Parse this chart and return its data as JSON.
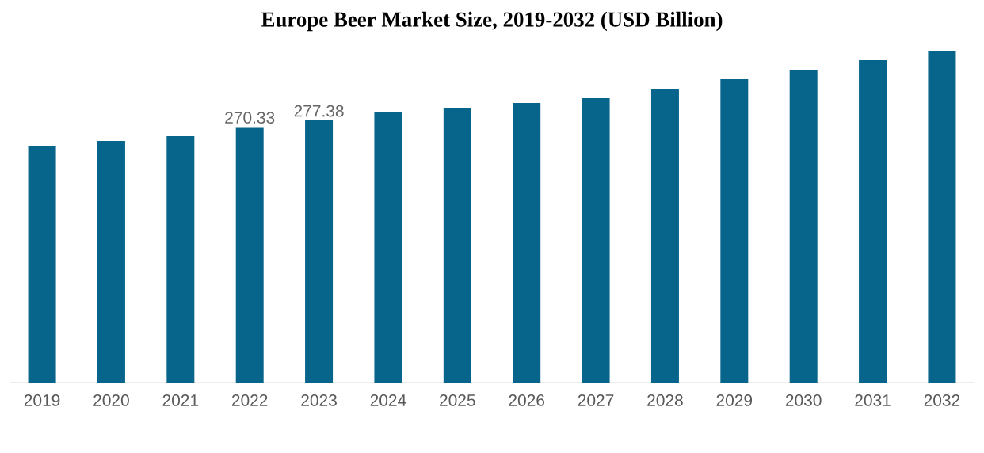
{
  "chart_data": {
    "type": "bar",
    "title": "Europe Beer Market Size, 2019-2032 (USD Billion)",
    "categories": [
      "2019",
      "2020",
      "2021",
      "2022",
      "2023",
      "2024",
      "2025",
      "2026",
      "2027",
      "2028",
      "2029",
      "2030",
      "2031",
      "2032"
    ],
    "values": [
      250.5,
      255.6,
      260.6,
      270.33,
      277.38,
      285.7,
      290.8,
      295.8,
      300.8,
      310.9,
      320.9,
      331.0,
      341.0,
      351.1
    ],
    "value_labels": [
      null,
      null,
      null,
      "270.33",
      "277.38",
      null,
      null,
      null,
      null,
      null,
      null,
      null,
      null,
      null
    ],
    "color": "#07648a"
  }
}
